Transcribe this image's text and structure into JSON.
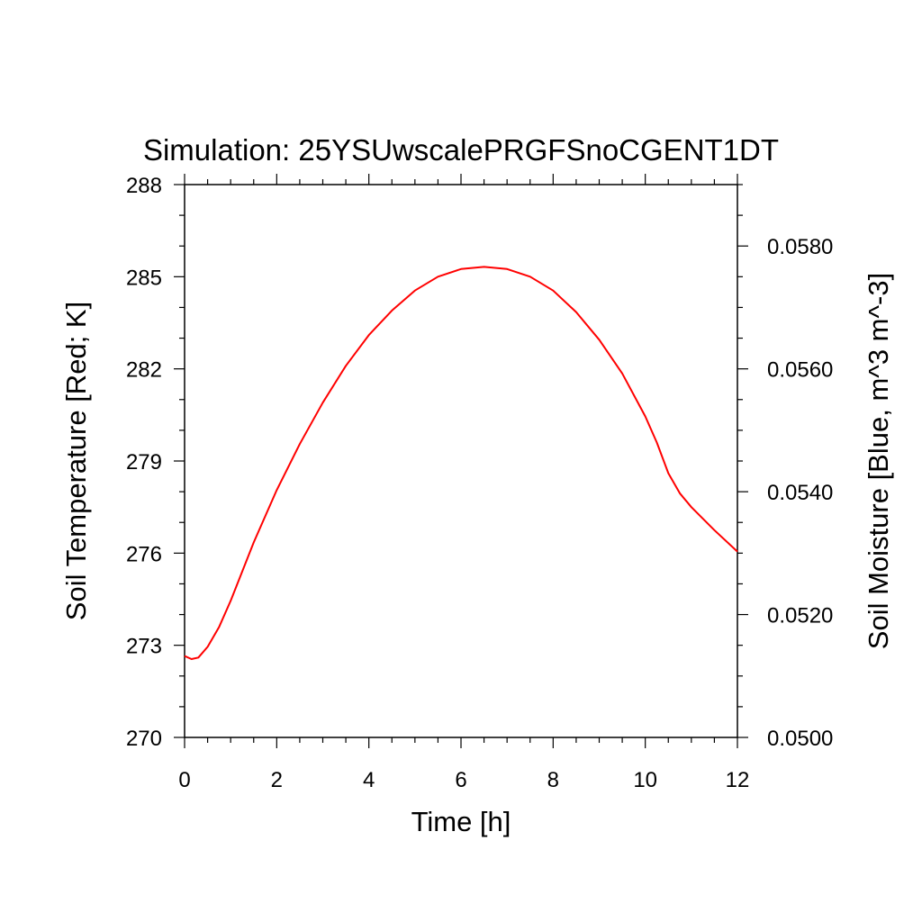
{
  "chart_data": {
    "type": "line",
    "title": "Simulation: 25YSUwscalePRGFSnoCGENT1DT",
    "xlabel": "Time [h]",
    "ylabel": "Soil Temperature [Red; K]",
    "y2label": "Soil Moisture [Blue, m^3 m^-3]",
    "xlim": [
      0,
      12
    ],
    "ylim": [
      270,
      288
    ],
    "y2lim": [
      0.05,
      0.059
    ],
    "x_ticks": [
      "0",
      "2",
      "4",
      "6",
      "8",
      "10",
      "12"
    ],
    "y_ticks": [
      "270",
      "273",
      "276",
      "279",
      "282",
      "285",
      "288"
    ],
    "y2_ticks": [
      "0.0500",
      "0.0520",
      "0.0540",
      "0.0560",
      "0.0580"
    ],
    "grid": false,
    "series": [
      {
        "axis": "left",
        "color": "#ff0000",
        "x": [
          0,
          0.15,
          0.3,
          0.5,
          0.75,
          1,
          1.5,
          2,
          2.5,
          3,
          3.5,
          4,
          4.5,
          5,
          5.5,
          6,
          6.5,
          7,
          7.5,
          8,
          8.5,
          9,
          9.5,
          10,
          10.25,
          10.5,
          10.75,
          11,
          11.5,
          12
        ],
        "y": [
          272.65,
          272.55,
          272.6,
          272.95,
          273.6,
          274.45,
          276.35,
          278.05,
          279.55,
          280.9,
          282.1,
          283.1,
          283.9,
          284.55,
          285.0,
          285.25,
          285.32,
          285.25,
          285.0,
          284.55,
          283.85,
          282.95,
          281.85,
          280.45,
          279.6,
          278.6,
          277.95,
          277.5,
          276.75,
          276.05
        ]
      }
    ]
  }
}
